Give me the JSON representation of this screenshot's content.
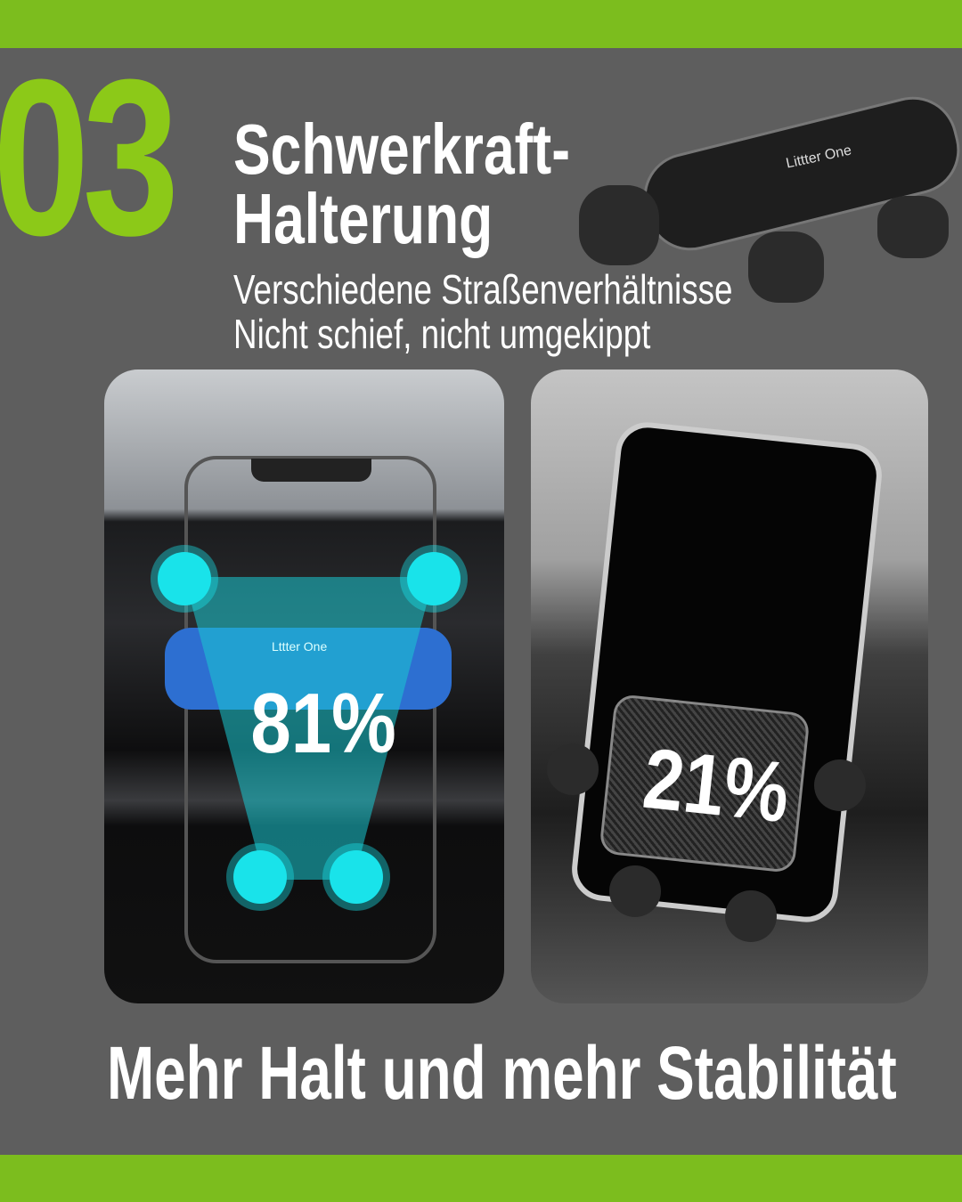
{
  "header": {
    "number": "03",
    "title_line1": "Schwerkraft-",
    "title_line2": "Halterung",
    "subtitle_line1": "Verschiedene Straßenverhältnisse",
    "subtitle_line2": "Nicht schief, nicht umgekippt"
  },
  "product": {
    "brand": "Littter One"
  },
  "left_panel": {
    "brand": "Lttter One",
    "percent": "81%"
  },
  "right_panel": {
    "percent": "21%"
  },
  "footer": {
    "tagline": "Mehr Halt und mehr Stabilität"
  },
  "colors": {
    "accent": "#7cbd1e",
    "number": "#8cc918",
    "background": "#5e5e5e",
    "highlight": "#19e3ea"
  }
}
